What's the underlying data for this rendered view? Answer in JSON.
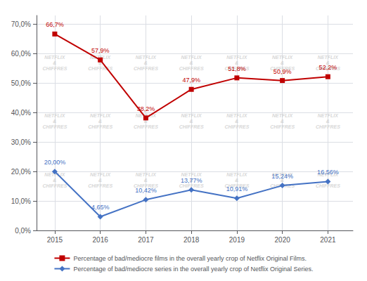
{
  "chart_data": {
    "type": "line",
    "x": [
      2015,
      2016,
      2017,
      2018,
      2019,
      2020,
      2021
    ],
    "xlim": [
      2014.6,
      2021.55
    ],
    "xticks": [
      2015,
      2016,
      2017,
      2018,
      2019,
      2020,
      2021
    ],
    "ylim": [
      0,
      73
    ],
    "yticks": [
      {
        "value": 0,
        "label": "0,0%"
      },
      {
        "value": 10,
        "label": "10,0%"
      },
      {
        "value": 20,
        "label": "20,0%"
      },
      {
        "value": 30,
        "label": "30,0%"
      },
      {
        "value": 40,
        "label": "40,0%"
      },
      {
        "value": 50,
        "label": "50,0%"
      },
      {
        "value": 60,
        "label": "60,0%"
      },
      {
        "value": 70,
        "label": "70,0%"
      }
    ],
    "grid": true,
    "legend": "bottom",
    "data_labels": true,
    "series": [
      {
        "name": "Percentage of bad/mediocre films in the overall yearly crop of Netflix Original Films.",
        "color": "#c00000",
        "marker": "square",
        "values": [
          66.7,
          57.9,
          38.2,
          47.9,
          51.8,
          50.9,
          52.2
        ],
        "value_labels": [
          "66,7%",
          "57,9%",
          "38,2%",
          "47,9%",
          "51,8%",
          "50,9%",
          "52,2%"
        ]
      },
      {
        "name": "Percentage of bad/mediocre series in the overall yearly crop of Netflix Original Series.",
        "color": "#4472c4",
        "marker": "diamond",
        "values": [
          20.0,
          4.65,
          10.42,
          13.77,
          10.91,
          15.24,
          16.56
        ],
        "value_labels": [
          "20,00%",
          "4,65%",
          "10,42%",
          "13,77%",
          "10,91%",
          "15,24%",
          "16,56%"
        ]
      }
    ],
    "annotations": [
      {
        "text": "NETFLIX\n&\nCHIFFRES",
        "x": 2015,
        "y": 57,
        "color": "#cccccc"
      },
      {
        "text": "NETFLIX\n&\nCHIFFRES",
        "x": 2015,
        "y": 37,
        "color": "#cccccc"
      },
      {
        "text": "NETFLIX\n&\nCHIFFRES",
        "x": 2015,
        "y": 17,
        "color": "#cccccc"
      },
      {
        "text": "NETFLIX\n&\nCHIFFRES",
        "x": 2016,
        "y": 57,
        "color": "#cccccc"
      },
      {
        "text": "NETFLIX\n&\nCHIFFRES",
        "x": 2016,
        "y": 37,
        "color": "#cccccc"
      },
      {
        "text": "NETFLIX\n&\nCHIFFRES",
        "x": 2016,
        "y": 17,
        "color": "#cccccc"
      },
      {
        "text": "NETFLIX\n&\nCHIFFRES",
        "x": 2017,
        "y": 57,
        "color": "#cccccc"
      },
      {
        "text": "NETFLIX\n&\nCHIFFRES",
        "x": 2017,
        "y": 37,
        "color": "#cccccc"
      },
      {
        "text": "NETFLIX\n&\nCHIFFRES",
        "x": 2017,
        "y": 17,
        "color": "#cccccc"
      },
      {
        "text": "NETFLIX\n&\nCHIFFRES",
        "x": 2018,
        "y": 57,
        "color": "#cccccc"
      },
      {
        "text": "NETFLIX\n&\nCHIFFRES",
        "x": 2018,
        "y": 37,
        "color": "#cccccc"
      },
      {
        "text": "NETFLIX\n&\nCHIFFRES",
        "x": 2018,
        "y": 17,
        "color": "#cccccc"
      },
      {
        "text": "NETFLIX\n&\nCHIFFRES",
        "x": 2019,
        "y": 57,
        "color": "#cccccc"
      },
      {
        "text": "NETFLIX\n&\nCHIFFRES",
        "x": 2019,
        "y": 37,
        "color": "#cccccc"
      },
      {
        "text": "NETFLIX\n&\nCHIFFRES",
        "x": 2019,
        "y": 17,
        "color": "#cccccc"
      },
      {
        "text": "NETFLIX\n&\nCHIFFRES",
        "x": 2020,
        "y": 57,
        "color": "#cccccc"
      },
      {
        "text": "NETFLIX\n&\nCHIFFRES",
        "x": 2020,
        "y": 37,
        "color": "#cccccc"
      },
      {
        "text": "NETFLIX\n&\nCHIFFRES",
        "x": 2020,
        "y": 17,
        "color": "#cccccc"
      },
      {
        "text": "NETFLIX\n&\nCHIFFRES",
        "x": 2021,
        "y": 57,
        "color": "#cccccc"
      },
      {
        "text": "NETFLIX\n&\nCHIFFRES",
        "x": 2021,
        "y": 37,
        "color": "#cccccc"
      },
      {
        "text": "NETFLIX\n&\nCHIFFRES",
        "x": 2021,
        "y": 17,
        "color": "#cccccc"
      }
    ]
  }
}
